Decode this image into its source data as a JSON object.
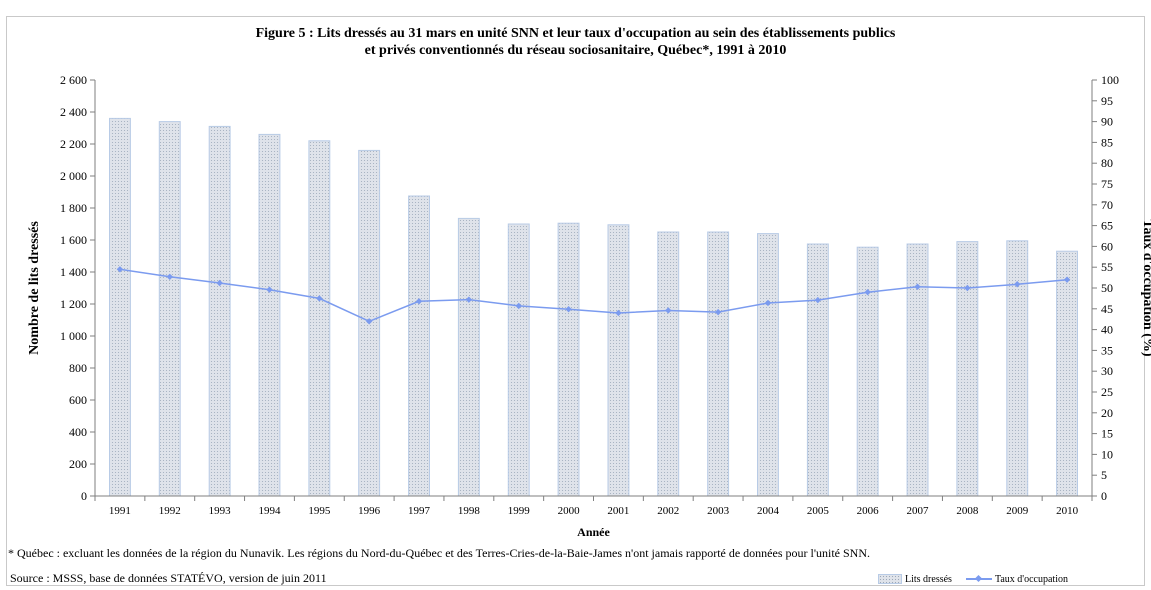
{
  "chart_data": {
    "type": "bar",
    "title_line1": "Figure 5 : Lits dressés au 31 mars en unité SNN et leur taux d'occupation au sein des établissements publics",
    "title_line2": "et privés conventionnés du réseau sociosanitaire, Québec*, 1991 à 2010",
    "xlabel": "Année",
    "ylabel": "Nombre de lits dressés",
    "y2label": "Taux d'occupation (%)",
    "categories": [
      "1991",
      "1992",
      "1993",
      "1994",
      "1995",
      "1996",
      "1997",
      "1998",
      "1999",
      "2000",
      "2001",
      "2002",
      "2003",
      "2004",
      "2005",
      "2006",
      "2007",
      "2008",
      "2009",
      "2010"
    ],
    "ylim": [
      0,
      2600
    ],
    "y2lim": [
      0,
      100
    ],
    "y_ticks": [
      {
        "value": 0,
        "label": "0"
      },
      {
        "value": 200,
        "label": "200"
      },
      {
        "value": 400,
        "label": "400"
      },
      {
        "value": 600,
        "label": "600"
      },
      {
        "value": 800,
        "label": "800"
      },
      {
        "value": 1000,
        "label": "1 000"
      },
      {
        "value": 1200,
        "label": "1 200"
      },
      {
        "value": 1400,
        "label": "1 400"
      },
      {
        "value": 1600,
        "label": "1 600"
      },
      {
        "value": 1800,
        "label": "1 800"
      },
      {
        "value": 2000,
        "label": "2 000"
      },
      {
        "value": 2200,
        "label": "2 200"
      },
      {
        "value": 2400,
        "label": "2 400"
      },
      {
        "value": 2600,
        "label": "2 600"
      }
    ],
    "y2_ticks": [
      0,
      5,
      10,
      15,
      20,
      25,
      30,
      35,
      40,
      45,
      50,
      55,
      60,
      65,
      70,
      75,
      80,
      85,
      90,
      95,
      100
    ],
    "series": [
      {
        "name": "Lits dressés",
        "type": "bar",
        "axis": "left",
        "values": [
          2360,
          2340,
          2310,
          2260,
          2220,
          2160,
          1875,
          1735,
          1700,
          1705,
          1695,
          1650,
          1650,
          1640,
          1575,
          1555,
          1575,
          1590,
          1595,
          1530
        ]
      },
      {
        "name": "Taux d'occupation",
        "type": "line",
        "axis": "right",
        "values": [
          54.5,
          52.7,
          51.2,
          49.6,
          47.5,
          42.0,
          46.8,
          47.2,
          45.7,
          44.9,
          44.0,
          44.6,
          44.2,
          46.4,
          47.1,
          49.0,
          50.3,
          50.0,
          50.9,
          52.0
        ]
      }
    ],
    "colors": {
      "bar_fill": "#dfe3ea",
      "bar_dots": "#9ca8b8",
      "bar_edge": "#b8cbe6",
      "line": "#7b9bef"
    },
    "grid": false,
    "legend_position": "bottom-right"
  },
  "footnote": "* Québec : excluant les données de la région du Nunavik. Les régions du Nord-du-Québec et des Terres-Cries-de-la-Baie-James  n'ont jamais rapporté de données pour l'unité SNN.",
  "source": "Source : MSSS, base de données STATÉVO, version de juin 2011"
}
